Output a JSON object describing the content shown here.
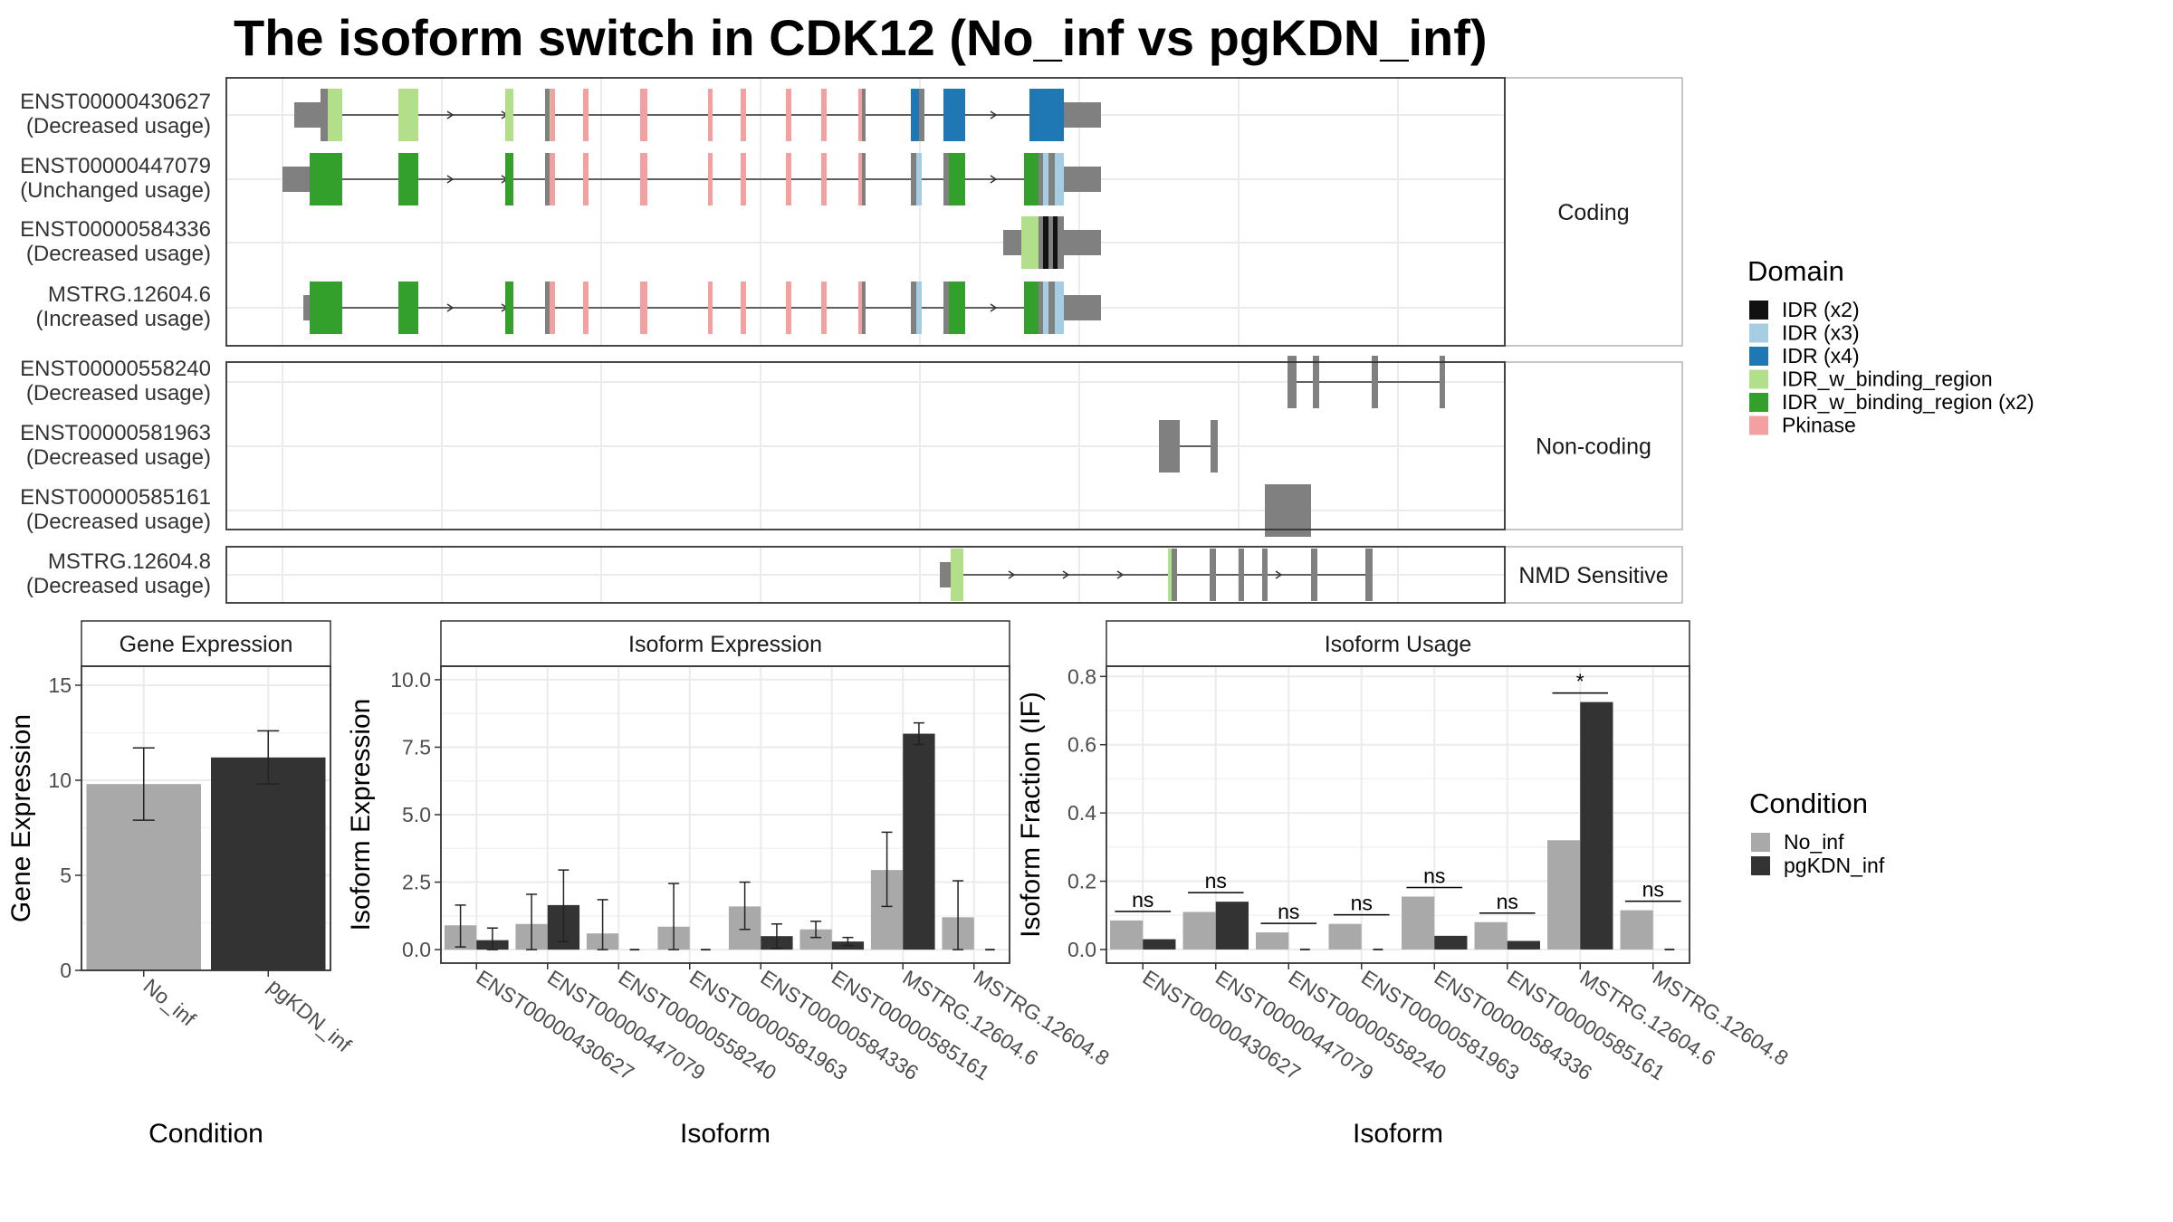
{
  "title": "The isoform switch in CDK12 (No_inf vs pgKDN_inf)",
  "chart_data": [
    {
      "type": "transcript-structure",
      "panels": [
        {
          "strip": "Coding",
          "rows": [
            {
              "name": "ENST00000430627",
              "usage": "(Decreased usage)"
            },
            {
              "name": "ENST00000447079",
              "usage": "(Unchanged usage)"
            },
            {
              "name": "ENST00000584336",
              "usage": "(Decreased usage)"
            },
            {
              "name": "MSTRG.12604.6",
              "usage": "(Increased usage)"
            }
          ]
        },
        {
          "strip": "Non-coding",
          "rows": [
            {
              "name": "ENST00000558240",
              "usage": "(Decreased usage)"
            },
            {
              "name": "ENST00000581963",
              "usage": "(Decreased usage)"
            },
            {
              "name": "ENST00000585161",
              "usage": "(Decreased usage)"
            }
          ]
        },
        {
          "strip": "NMD Sensitive",
          "rows": [
            {
              "name": "MSTRG.12604.8",
              "usage": "(Decreased usage)"
            }
          ]
        }
      ],
      "legend": {
        "title": "Domain",
        "items": [
          {
            "label": "IDR (x2)",
            "color": "#111111"
          },
          {
            "label": "IDR (x3)",
            "color": "#a6cee3"
          },
          {
            "label": "IDR (x4)",
            "color": "#1f78b4"
          },
          {
            "label": "IDR_w_binding_region",
            "color": "#b2df8a"
          },
          {
            "label": "IDR_w_binding_region (x2)",
            "color": "#33a02c"
          },
          {
            "label": "Pkinase",
            "color": "#f4a0a0"
          }
        ]
      },
      "colors": {
        "exon": "#808080",
        "line": "#333333"
      }
    },
    {
      "type": "bar",
      "strip": "Gene Expression",
      "xlabel": "Condition",
      "ylabel": "Gene Expression",
      "ylim": [
        0,
        16
      ],
      "yticks": [
        "0",
        "5",
        "10",
        "15"
      ],
      "ytick_values": [
        0,
        5,
        10,
        15
      ],
      "categories": [
        "No_inf",
        "pgKDN_inf"
      ],
      "values": [
        9.8,
        11.2
      ],
      "errors": [
        [
          7.9,
          11.7
        ],
        [
          9.8,
          12.6
        ]
      ],
      "colors": [
        "#a9a9a9",
        "#333333"
      ]
    },
    {
      "type": "bar",
      "strip": "Isoform Expression",
      "xlabel": "Isoform",
      "ylabel": "Isoform Expression",
      "ylim": [
        -0.5,
        10.5
      ],
      "yticks": [
        "0.0",
        "2.5",
        "5.0",
        "7.5",
        "10.0"
      ],
      "ytick_values": [
        0,
        2.5,
        5,
        7.5,
        10
      ],
      "categories": [
        "ENST00000430627",
        "ENST00000447079",
        "ENST00000558240",
        "ENST00000581963",
        "ENST00000584336",
        "ENST00000585161",
        "MSTRG.12604.6",
        "MSTRG.12604.8"
      ],
      "series": [
        {
          "name": "No_inf",
          "color": "#a9a9a9",
          "values": [
            0.9,
            0.95,
            0.6,
            0.85,
            1.6,
            0.75,
            2.95,
            1.2
          ],
          "errors": [
            [
              0.1,
              1.65
            ],
            [
              0.0,
              2.05
            ],
            [
              0.0,
              1.85
            ],
            [
              0.0,
              2.45
            ],
            [
              0.75,
              2.5
            ],
            [
              0.45,
              1.05
            ],
            [
              1.6,
              4.35
            ],
            [
              0.0,
              2.55
            ]
          ]
        },
        {
          "name": "pgKDN_inf",
          "color": "#333333",
          "values": [
            0.35,
            1.65,
            0.0,
            0.0,
            0.5,
            0.3,
            8.0,
            0.0
          ],
          "errors": [
            [
              0.0,
              0.8
            ],
            [
              0.3,
              2.95
            ],
            [
              0.0,
              0.0
            ],
            [
              0.0,
              0.0
            ],
            [
              0.05,
              0.95
            ],
            [
              0.15,
              0.45
            ],
            [
              7.6,
              8.4
            ],
            [
              0.0,
              0.0
            ]
          ]
        }
      ]
    },
    {
      "type": "bar",
      "strip": "Isoform Usage",
      "xlabel": "Isoform",
      "ylabel": "Isoform Fraction (IF)",
      "ylim": [
        -0.04,
        0.83
      ],
      "yticks": [
        "0.0",
        "0.2",
        "0.4",
        "0.6",
        "0.8"
      ],
      "ytick_values": [
        0,
        0.2,
        0.4,
        0.6,
        0.8
      ],
      "categories": [
        "ENST00000430627",
        "ENST00000447079",
        "ENST00000558240",
        "ENST00000581963",
        "ENST00000584336",
        "ENST00000585161",
        "MSTRG.12604.6",
        "MSTRG.12604.8"
      ],
      "series": [
        {
          "name": "No_inf",
          "color": "#a9a9a9",
          "values": [
            0.085,
            0.11,
            0.05,
            0.075,
            0.155,
            0.08,
            0.32,
            0.115
          ]
        },
        {
          "name": "pgKDN_inf",
          "color": "#333333",
          "values": [
            0.03,
            0.14,
            0.0,
            0.0,
            0.04,
            0.025,
            0.725,
            0.0
          ]
        }
      ],
      "significance": [
        "ns",
        "ns",
        "ns",
        "ns",
        "ns",
        "ns",
        "*",
        "ns"
      ]
    }
  ],
  "condition_legend": {
    "title": "Condition",
    "items": [
      {
        "label": "No_inf",
        "color": "#a9a9a9"
      },
      {
        "label": "pgKDN_inf",
        "color": "#333333"
      }
    ]
  }
}
